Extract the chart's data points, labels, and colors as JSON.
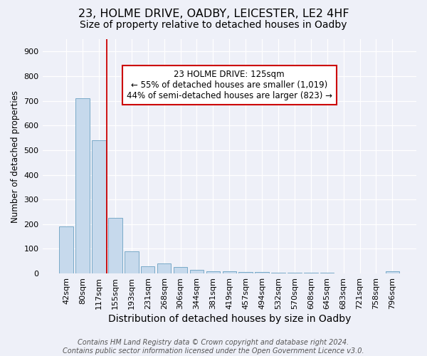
{
  "title": "23, HOLME DRIVE, OADBY, LEICESTER, LE2 4HF",
  "subtitle": "Size of property relative to detached houses in Oadby",
  "xlabel": "Distribution of detached houses by size in Oadby",
  "ylabel": "Number of detached properties",
  "categories": [
    "42sqm",
    "80sqm",
    "117sqm",
    "155sqm",
    "193sqm",
    "231sqm",
    "268sqm",
    "306sqm",
    "344sqm",
    "381sqm",
    "419sqm",
    "457sqm",
    "494sqm",
    "532sqm",
    "570sqm",
    "608sqm",
    "645sqm",
    "683sqm",
    "721sqm",
    "758sqm",
    "796sqm"
  ],
  "values": [
    190,
    710,
    540,
    225,
    90,
    30,
    40,
    25,
    15,
    10,
    10,
    5,
    5,
    3,
    3,
    2,
    2,
    1,
    1,
    1,
    8
  ],
  "bar_color": "#c6d9ec",
  "bar_edge_color": "#7aaac8",
  "vline_color": "#cc0000",
  "vline_x": 2.5,
  "annotation_text": "23 HOLME DRIVE: 125sqm\n← 55% of detached houses are smaller (1,019)\n44% of semi-detached houses are larger (823) →",
  "annotation_box_color": "white",
  "annotation_border_color": "#cc0000",
  "ylim": [
    0,
    950
  ],
  "yticks": [
    0,
    100,
    200,
    300,
    400,
    500,
    600,
    700,
    800,
    900
  ],
  "footer": "Contains HM Land Registry data © Crown copyright and database right 2024.\nContains public sector information licensed under the Open Government Licence v3.0.",
  "title_fontsize": 11.5,
  "subtitle_fontsize": 10,
  "xlabel_fontsize": 10,
  "ylabel_fontsize": 8.5,
  "tick_fontsize": 8,
  "footer_fontsize": 7,
  "background_color": "#eef0f8"
}
